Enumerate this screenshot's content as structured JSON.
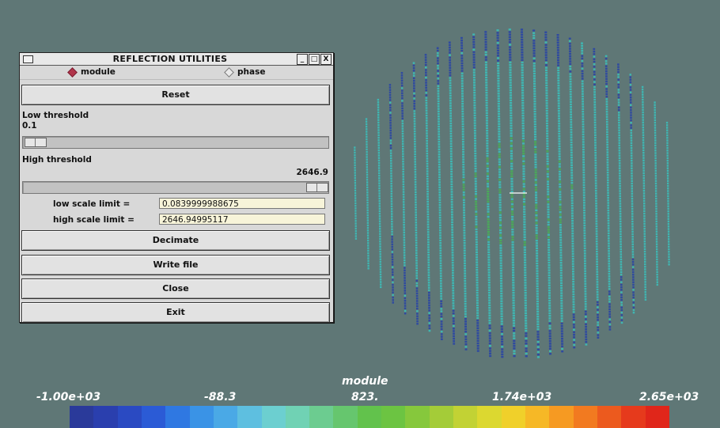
{
  "dialog": {
    "title": "REFLECTION UTILITIES",
    "window_buttons": [
      "_",
      "□",
      "X"
    ],
    "radio_module": "module",
    "radio_phase": "phase",
    "selected_mode": "module",
    "reset_label": "Reset",
    "low_threshold_label": "Low threshold",
    "low_threshold_value": "0.1",
    "low_threshold_fraction": 0.0,
    "high_threshold_label": "High threshold",
    "high_threshold_value": "2646.9",
    "high_threshold_fraction": 1.0,
    "low_scale_label": "low scale limit =",
    "low_scale_value": "0.0839999988675",
    "high_scale_label": "high scale limit =",
    "high_scale_value": "2646.94995117",
    "decimate_label": "Decimate",
    "write_file_label": "Write file",
    "close_label": "Close",
    "exit_label": "Exit"
  },
  "legend": {
    "title": "module",
    "ticks": [
      "-1.00e+03",
      "-88.3",
      "823.",
      "1.74e+03",
      "2.65e+03"
    ],
    "colors": [
      "#2a3a9a",
      "#2a3fae",
      "#2a4ac2",
      "#2b5bd6",
      "#2f78e2",
      "#3a93e6",
      "#4aa9e6",
      "#5ebfe0",
      "#6ccfd0",
      "#70d2b4",
      "#6ccc90",
      "#66c66e",
      "#62c24c",
      "#6cc442",
      "#86c83c",
      "#a4cc38",
      "#c2d234",
      "#dcd830",
      "#f0d02a",
      "#f6b826",
      "#f69a22",
      "#f27a20",
      "#ec5a1e",
      "#e63a1c",
      "#e0261a"
    ]
  },
  "viz": {
    "colors": {
      "background": "#5f7776",
      "low": "#2f4aa0",
      "mid": "#3fb6b2",
      "center": "#4aa95a"
    }
  }
}
